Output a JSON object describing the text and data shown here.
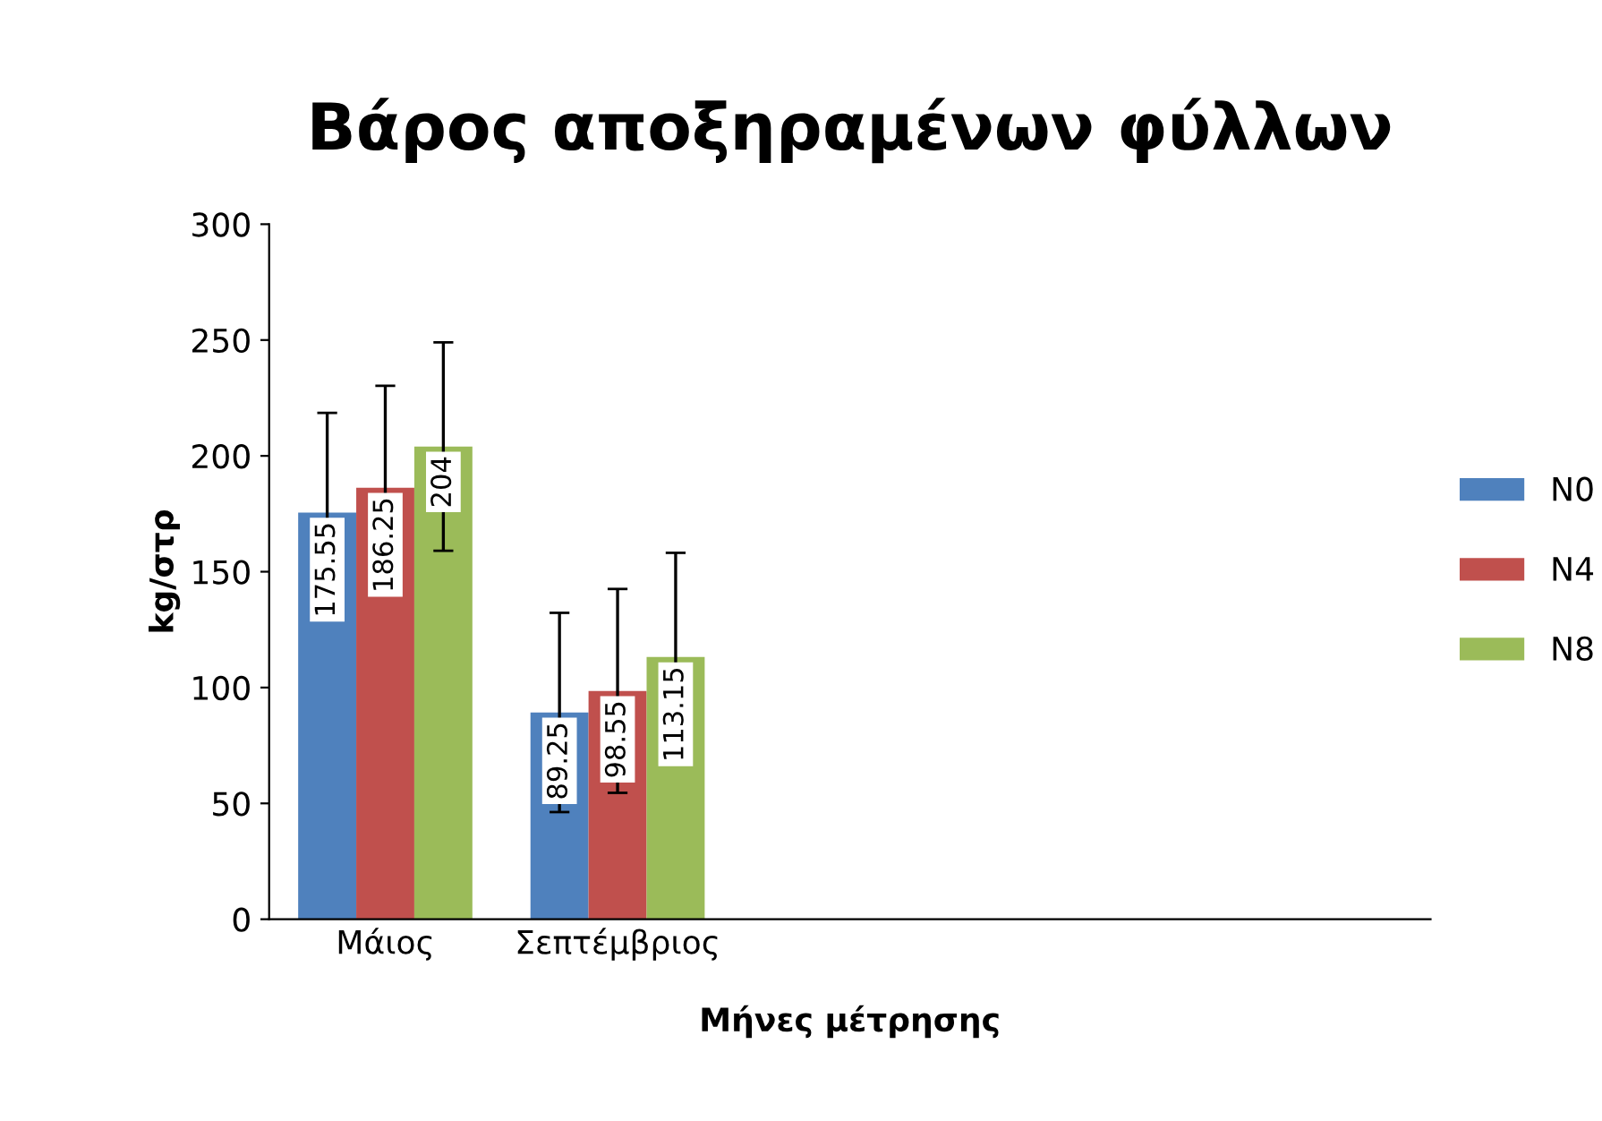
{
  "chart_data": {
    "type": "bar",
    "title": "Βάρος αποξηραμένων φύλλων",
    "xlabel": "Μήνες μέτρησης",
    "ylabel": "kg/στρ",
    "categories": [
      "Μάιος",
      "Σεπτέμβριος",
      null,
      null,
      null
    ],
    "series": [
      {
        "name": "N0",
        "color": "#4f81bd",
        "values": [
          175.55,
          89.25,
          null,
          null,
          null
        ],
        "errors": [
          43,
          43,
          null,
          null,
          null
        ]
      },
      {
        "name": "N4",
        "color": "#c0504d",
        "values": [
          186.25,
          98.55,
          null,
          null,
          null
        ],
        "errors": [
          44,
          44,
          null,
          null,
          null
        ]
      },
      {
        "name": "N8",
        "color": "#9bbb59",
        "values": [
          204,
          113.15,
          null,
          null,
          null
        ],
        "errors": [
          45,
          45,
          null,
          null,
          null
        ]
      }
    ],
    "ylim": [
      0,
      300
    ],
    "yticks": [
      0,
      50,
      100,
      150,
      200,
      250,
      300
    ],
    "grid": false,
    "legend": "right",
    "data_labels": true
  }
}
